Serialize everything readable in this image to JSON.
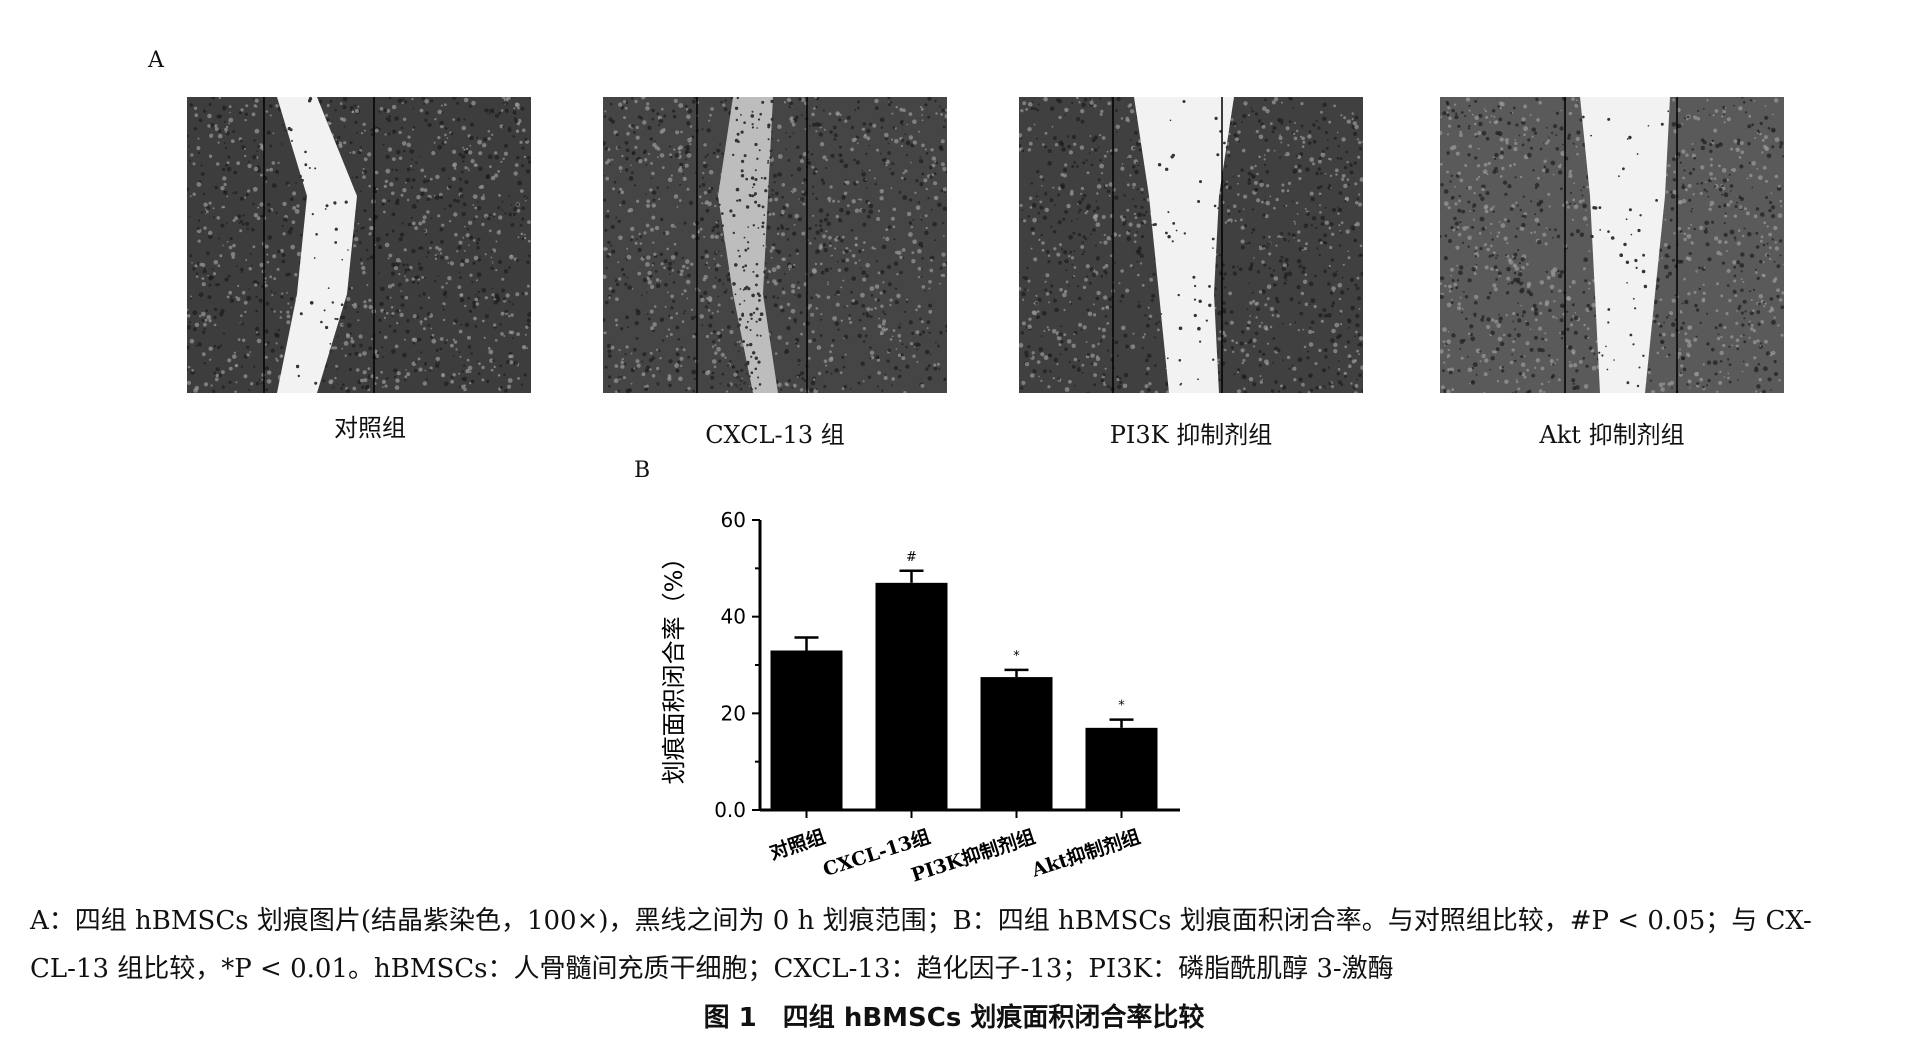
{
  "panel_a": {
    "label": "A",
    "images": [
      {
        "caption": "对照组"
      },
      {
        "caption": "CXCL-13 组"
      },
      {
        "caption": "PI3K 抑制剂组"
      },
      {
        "caption": "Akt 抑制剂组"
      }
    ]
  },
  "panel_b": {
    "label": "B"
  },
  "chart_data": {
    "type": "bar",
    "categories": [
      "对照组",
      "CXCL-13组",
      "PI3K抑制剂组",
      "Akt抑制剂组"
    ],
    "values": [
      33,
      47,
      27.5,
      17
    ],
    "errors": [
      2.7,
      2.5,
      1.5,
      1.7
    ],
    "annotations": [
      "",
      "#",
      "*",
      "*"
    ],
    "ylabel": "划痕面积闭合率（%）",
    "ylim": [
      0,
      60
    ],
    "yticks": [
      "0.0",
      "20",
      "40",
      "60"
    ],
    "bar_color": "#000000"
  },
  "legend": {
    "line1": "A：四组 hBMSCs 划痕图片(结晶紫染色，100×)，黑线之间为 0 h 划痕范围；B：四组 hBMSCs 划痕面积闭合率。与对照组比较，#P < 0.05；与 CX-",
    "line2": "CL-13 组比较，*P < 0.01。hBMSCs：人骨髓间充质干细胞；CXCL-13：趋化因子-13；PI3K：磷脂酰肌醇 3-激酶"
  },
  "figure_title": "图 1　四组 hBMSCs 划痕面积闭合率比较"
}
